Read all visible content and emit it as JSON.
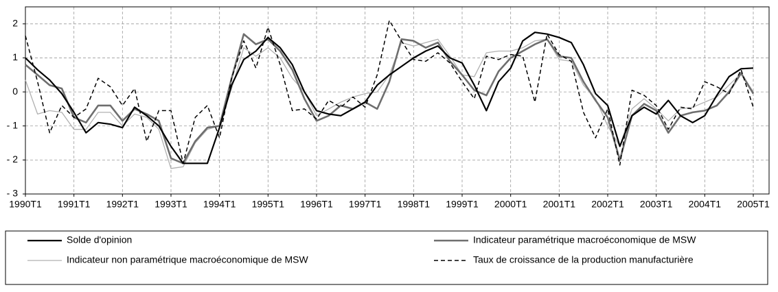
{
  "chart_data": {
    "type": "line",
    "categories": [
      "1990T1",
      null,
      null,
      null,
      "1991T1",
      null,
      null,
      null,
      "1992T1",
      null,
      null,
      null,
      "1993T1",
      null,
      null,
      null,
      "1994T1",
      null,
      null,
      null,
      "1995T1",
      null,
      null,
      null,
      "1996T1",
      null,
      null,
      null,
      "1997T1",
      null,
      null,
      null,
      "1998T1",
      null,
      null,
      null,
      "1999T1",
      null,
      null,
      null,
      "2000T1",
      null,
      null,
      null,
      "2001T1",
      null,
      null,
      null,
      "2002T1",
      null,
      null,
      null,
      "2003T1",
      null,
      null,
      null,
      "2004T1",
      null,
      null,
      null,
      "2005T1"
    ],
    "series": [
      {
        "name": "Solde d'opinion",
        "color": "#000000",
        "line_width": 2.2,
        "dashed": false,
        "values": [
          1.0,
          0.65,
          0.35,
          -0.05,
          -0.6,
          -1.2,
          -0.9,
          -0.95,
          -1.05,
          -0.45,
          -0.7,
          -1.0,
          -1.6,
          -2.1,
          -2.1,
          -2.1,
          -1.05,
          0.2,
          0.95,
          1.2,
          1.6,
          1.3,
          0.8,
          0.0,
          -0.55,
          -0.65,
          -0.7,
          -0.5,
          -0.3,
          0.2,
          0.5,
          0.75,
          1.0,
          1.2,
          1.35,
          1.0,
          0.85,
          0.2,
          -0.55,
          0.3,
          0.7,
          1.5,
          1.75,
          1.7,
          1.6,
          1.45,
          0.8,
          -0.05,
          -0.4,
          -1.6,
          -0.7,
          -0.45,
          -0.65,
          -0.25,
          -0.7,
          -0.9,
          -0.7,
          -0.1,
          0.45,
          0.68,
          0.7
        ]
      },
      {
        "name": "Indicateur paramétrique macroéconomique de MSW",
        "color": "#6e6e6e",
        "line_width": 2.6,
        "dashed": false,
        "values": [
          0.8,
          0.5,
          0.2,
          0.1,
          -0.75,
          -0.9,
          -0.4,
          -0.4,
          -0.85,
          -0.5,
          -0.65,
          -0.85,
          -1.95,
          -2.1,
          -1.45,
          -1.05,
          -1.0,
          0.4,
          1.7,
          1.4,
          1.55,
          1.2,
          0.65,
          -0.2,
          -0.85,
          -0.7,
          -0.4,
          -0.5,
          -0.3,
          -0.5,
          0.3,
          1.55,
          1.5,
          1.3,
          1.45,
          0.9,
          0.5,
          0.05,
          -0.1,
          0.6,
          1.0,
          1.2,
          1.4,
          1.55,
          1.05,
          1.0,
          0.3,
          -0.25,
          -0.75,
          -2.0,
          -0.7,
          -0.35,
          -0.55,
          -1.2,
          -0.7,
          -0.6,
          -0.55,
          -0.4,
          0.0,
          0.55,
          -0.05
        ]
      },
      {
        "name": "Indicateur non paramétrique macroéconomique de MSW",
        "color": "#b0b0b0",
        "line_width": 1.3,
        "dashed": false,
        "values": [
          0.35,
          -0.65,
          -0.55,
          -0.6,
          -1.1,
          -1.1,
          -0.6,
          -0.6,
          -1.0,
          -0.65,
          -0.75,
          -1.1,
          -2.25,
          -2.2,
          -1.5,
          -1.1,
          -1.0,
          0.1,
          1.3,
          1.05,
          1.3,
          1.0,
          0.4,
          0.0,
          -0.7,
          -0.5,
          -0.3,
          -0.15,
          -0.05,
          0.0,
          0.5,
          1.45,
          1.35,
          1.45,
          1.55,
          1.05,
          0.5,
          0.45,
          1.15,
          1.2,
          1.2,
          1.3,
          1.5,
          1.55,
          0.95,
          0.9,
          0.2,
          -0.2,
          -1.0,
          -1.6,
          -0.5,
          -0.2,
          -0.5,
          -0.85,
          -0.5,
          -0.45,
          -0.3,
          -0.15,
          0.2,
          0.55,
          0.0
        ]
      },
      {
        "name": "Taux de croissance de la production manufacturière",
        "color": "#000000",
        "line_width": 1.5,
        "dashed": true,
        "values": [
          1.65,
          0.3,
          -1.2,
          -0.4,
          -0.75,
          -0.5,
          0.4,
          0.15,
          -0.4,
          0.1,
          -1.45,
          -0.55,
          -0.55,
          -2.1,
          -0.75,
          -0.4,
          -1.35,
          0.4,
          1.5,
          0.7,
          1.9,
          0.8,
          -0.55,
          -0.5,
          -0.8,
          -0.25,
          -0.45,
          -0.15,
          -0.45,
          0.5,
          2.1,
          1.5,
          0.95,
          0.9,
          1.15,
          0.85,
          0.3,
          -0.2,
          1.05,
          0.95,
          1.1,
          1.05,
          -0.3,
          1.7,
          1.1,
          0.9,
          -0.6,
          -1.35,
          -0.5,
          -2.15,
          0.05,
          -0.1,
          -0.4,
          -1.1,
          -0.45,
          -0.5,
          0.3,
          0.15,
          -0.05,
          0.65,
          -0.45
        ]
      }
    ],
    "ylim": [
      -3,
      2.5
    ],
    "yticks": [
      {
        "value": -3,
        "label": "- 3"
      },
      {
        "value": -2,
        "label": "- 2"
      },
      {
        "value": -1,
        "label": "- 1"
      },
      0,
      1,
      2
    ],
    "grid": true
  }
}
